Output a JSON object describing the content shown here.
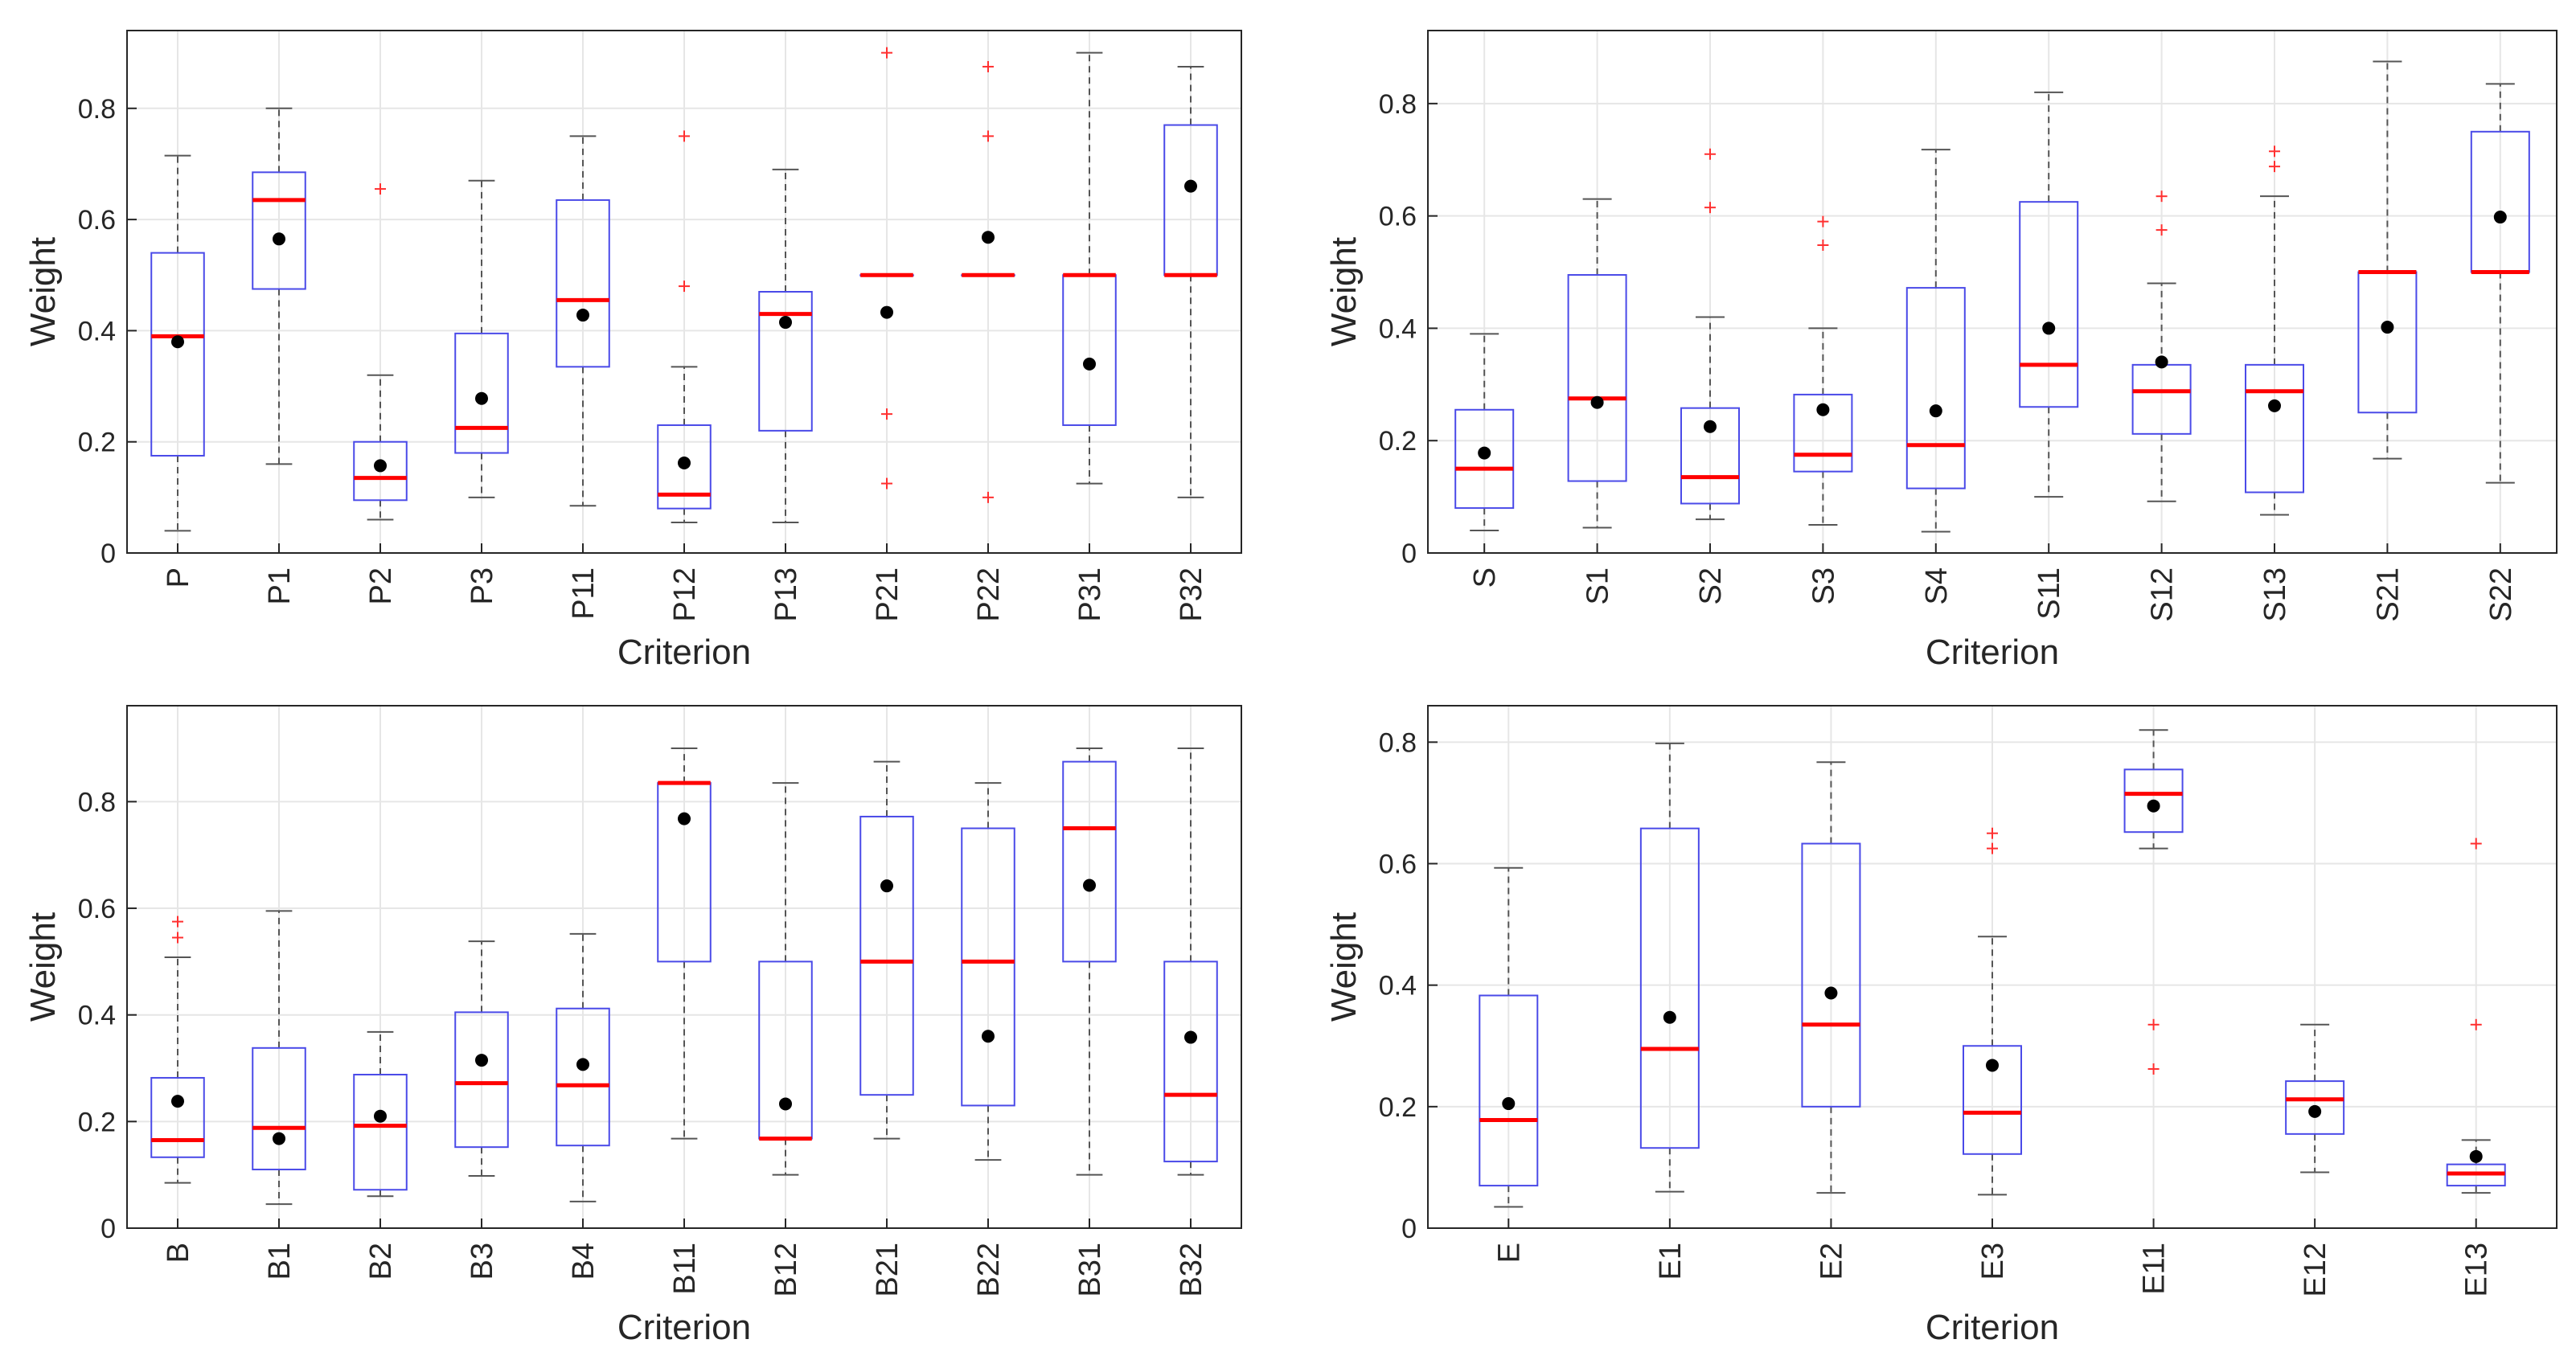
{
  "chart_data": [
    {
      "type": "box",
      "xlabel": "Criterion",
      "ylabel": "Weight",
      "ylim": [
        0,
        0.94
      ],
      "yticks": [
        0,
        0.2,
        0.4,
        0.6,
        0.8
      ],
      "ytick_labels": [
        "0",
        "0.2",
        "0.4",
        "0.6",
        "0.8"
      ],
      "grid": true,
      "categories": [
        "P",
        "P1",
        "P2",
        "P3",
        "P11",
        "P12",
        "P13",
        "P21",
        "P22",
        "P31",
        "P32"
      ],
      "boxes": [
        {
          "q1": 0.175,
          "median": 0.39,
          "q3": 0.54,
          "whisker_low": 0.04,
          "whisker_high": 0.715,
          "mean": 0.38,
          "outliers": []
        },
        {
          "q1": 0.475,
          "median": 0.635,
          "q3": 0.685,
          "whisker_low": 0.16,
          "whisker_high": 0.8,
          "mean": 0.565,
          "outliers": []
        },
        {
          "q1": 0.095,
          "median": 0.135,
          "q3": 0.2,
          "whisker_low": 0.06,
          "whisker_high": 0.32,
          "mean": 0.157,
          "outliers": [
            0.655
          ]
        },
        {
          "q1": 0.18,
          "median": 0.225,
          "q3": 0.395,
          "whisker_low": 0.1,
          "whisker_high": 0.67,
          "mean": 0.278,
          "outliers": []
        },
        {
          "q1": 0.335,
          "median": 0.455,
          "q3": 0.635,
          "whisker_low": 0.085,
          "whisker_high": 0.75,
          "mean": 0.428,
          "outliers": []
        },
        {
          "q1": 0.08,
          "median": 0.105,
          "q3": 0.23,
          "whisker_low": 0.055,
          "whisker_high": 0.335,
          "mean": 0.162,
          "outliers": [
            0.48,
            0.75
          ]
        },
        {
          "q1": 0.22,
          "median": 0.43,
          "q3": 0.47,
          "whisker_low": 0.055,
          "whisker_high": 0.69,
          "mean": 0.415,
          "outliers": []
        },
        {
          "q1": 0.5,
          "median": 0.5,
          "q3": 0.5,
          "whisker_low": 0.5,
          "whisker_high": 0.5,
          "mean": 0.433,
          "outliers": [
            0.125,
            0.25,
            0.9
          ]
        },
        {
          "q1": 0.5,
          "median": 0.5,
          "q3": 0.5,
          "whisker_low": 0.5,
          "whisker_high": 0.5,
          "mean": 0.568,
          "outliers": [
            0.1,
            0.75,
            0.875
          ]
        },
        {
          "q1": 0.23,
          "median": 0.5,
          "q3": 0.5,
          "whisker_low": 0.125,
          "whisker_high": 0.9,
          "mean": 0.34,
          "outliers": []
        },
        {
          "q1": 0.5,
          "median": 0.5,
          "q3": 0.77,
          "whisker_low": 0.1,
          "whisker_high": 0.875,
          "mean": 0.66,
          "outliers": []
        }
      ]
    },
    {
      "type": "box",
      "xlabel": "Criterion",
      "ylabel": "Weight",
      "ylim": [
        0,
        0.93
      ],
      "yticks": [
        0,
        0.2,
        0.4,
        0.6,
        0.8
      ],
      "ytick_labels": [
        "0",
        "0.2",
        "0.4",
        "0.6",
        "0.8"
      ],
      "grid": true,
      "categories": [
        "S",
        "S1",
        "S2",
        "S3",
        "S4",
        "S11",
        "S12",
        "S13",
        "S21",
        "S22"
      ],
      "boxes": [
        {
          "q1": 0.08,
          "median": 0.15,
          "q3": 0.255,
          "whisker_low": 0.04,
          "whisker_high": 0.39,
          "mean": 0.178,
          "outliers": []
        },
        {
          "q1": 0.128,
          "median": 0.275,
          "q3": 0.495,
          "whisker_low": 0.045,
          "whisker_high": 0.63,
          "mean": 0.268,
          "outliers": []
        },
        {
          "q1": 0.088,
          "median": 0.135,
          "q3": 0.258,
          "whisker_low": 0.06,
          "whisker_high": 0.42,
          "mean": 0.225,
          "outliers": [
            0.615,
            0.71
          ]
        },
        {
          "q1": 0.145,
          "median": 0.175,
          "q3": 0.282,
          "whisker_low": 0.05,
          "whisker_high": 0.4,
          "mean": 0.255,
          "outliers": [
            0.548,
            0.59
          ]
        },
        {
          "q1": 0.115,
          "median": 0.192,
          "q3": 0.472,
          "whisker_low": 0.038,
          "whisker_high": 0.718,
          "mean": 0.253,
          "outliers": []
        },
        {
          "q1": 0.26,
          "median": 0.335,
          "q3": 0.625,
          "whisker_low": 0.1,
          "whisker_high": 0.82,
          "mean": 0.4,
          "outliers": []
        },
        {
          "q1": 0.212,
          "median": 0.288,
          "q3": 0.335,
          "whisker_low": 0.092,
          "whisker_high": 0.48,
          "mean": 0.34,
          "outliers": [
            0.575,
            0.635
          ]
        },
        {
          "q1": 0.108,
          "median": 0.288,
          "q3": 0.335,
          "whisker_low": 0.068,
          "whisker_high": 0.635,
          "mean": 0.262,
          "outliers": [
            0.688,
            0.715
          ]
        },
        {
          "q1": 0.25,
          "median": 0.5,
          "q3": 0.5,
          "whisker_low": 0.168,
          "whisker_high": 0.875,
          "mean": 0.402,
          "outliers": []
        },
        {
          "q1": 0.5,
          "median": 0.5,
          "q3": 0.75,
          "whisker_low": 0.125,
          "whisker_high": 0.835,
          "mean": 0.598,
          "outliers": []
        }
      ]
    },
    {
      "type": "box",
      "xlabel": "Criterion",
      "ylabel": "Weight",
      "ylim": [
        0,
        0.98
      ],
      "yticks": [
        0,
        0.2,
        0.4,
        0.6,
        0.8
      ],
      "ytick_labels": [
        "0",
        "0.2",
        "0.4",
        "0.6",
        "0.8"
      ],
      "grid": true,
      "categories": [
        "B",
        "B1",
        "B2",
        "B3",
        "B4",
        "B11",
        "B12",
        "B21",
        "B22",
        "B31",
        "B32"
      ],
      "boxes": [
        {
          "q1": 0.133,
          "median": 0.165,
          "q3": 0.282,
          "whisker_low": 0.085,
          "whisker_high": 0.508,
          "mean": 0.238,
          "outliers": [
            0.545,
            0.575
          ]
        },
        {
          "q1": 0.11,
          "median": 0.188,
          "q3": 0.338,
          "whisker_low": 0.045,
          "whisker_high": 0.595,
          "mean": 0.168,
          "outliers": []
        },
        {
          "q1": 0.072,
          "median": 0.192,
          "q3": 0.288,
          "whisker_low": 0.06,
          "whisker_high": 0.368,
          "mean": 0.21,
          "outliers": []
        },
        {
          "q1": 0.152,
          "median": 0.272,
          "q3": 0.405,
          "whisker_low": 0.098,
          "whisker_high": 0.538,
          "mean": 0.315,
          "outliers": []
        },
        {
          "q1": 0.155,
          "median": 0.268,
          "q3": 0.412,
          "whisker_low": 0.05,
          "whisker_high": 0.552,
          "mean": 0.307,
          "outliers": []
        },
        {
          "q1": 0.5,
          "median": 0.835,
          "q3": 0.835,
          "whisker_low": 0.168,
          "whisker_high": 0.9,
          "mean": 0.768,
          "outliers": []
        },
        {
          "q1": 0.168,
          "median": 0.168,
          "q3": 0.5,
          "whisker_low": 0.1,
          "whisker_high": 0.835,
          "mean": 0.233,
          "outliers": []
        },
        {
          "q1": 0.25,
          "median": 0.5,
          "q3": 0.772,
          "whisker_low": 0.168,
          "whisker_high": 0.875,
          "mean": 0.642,
          "outliers": []
        },
        {
          "q1": 0.23,
          "median": 0.5,
          "q3": 0.75,
          "whisker_low": 0.128,
          "whisker_high": 0.835,
          "mean": 0.36,
          "outliers": []
        },
        {
          "q1": 0.5,
          "median": 0.75,
          "q3": 0.875,
          "whisker_low": 0.1,
          "whisker_high": 0.9,
          "mean": 0.643,
          "outliers": []
        },
        {
          "q1": 0.125,
          "median": 0.25,
          "q3": 0.5,
          "whisker_low": 0.1,
          "whisker_high": 0.9,
          "mean": 0.358,
          "outliers": []
        }
      ]
    },
    {
      "type": "box",
      "xlabel": "Criterion",
      "ylabel": "Weight",
      "ylim": [
        0,
        0.86
      ],
      "yticks": [
        0,
        0.2,
        0.4,
        0.6,
        0.8
      ],
      "ytick_labels": [
        "0",
        "0.2",
        "0.4",
        "0.6",
        "0.8"
      ],
      "grid": true,
      "categories": [
        "E",
        "E1",
        "E2",
        "E3",
        "E11",
        "E12",
        "E13"
      ],
      "boxes": [
        {
          "q1": 0.07,
          "median": 0.178,
          "q3": 0.383,
          "whisker_low": 0.035,
          "whisker_high": 0.593,
          "mean": 0.205,
          "outliers": []
        },
        {
          "q1": 0.132,
          "median": 0.295,
          "q3": 0.658,
          "whisker_low": 0.06,
          "whisker_high": 0.798,
          "mean": 0.347,
          "outliers": []
        },
        {
          "q1": 0.2,
          "median": 0.335,
          "q3": 0.633,
          "whisker_low": 0.058,
          "whisker_high": 0.767,
          "mean": 0.387,
          "outliers": []
        },
        {
          "q1": 0.122,
          "median": 0.19,
          "q3": 0.3,
          "whisker_low": 0.055,
          "whisker_high": 0.48,
          "mean": 0.268,
          "outliers": [
            0.625,
            0.65
          ]
        },
        {
          "q1": 0.652,
          "median": 0.715,
          "q3": 0.755,
          "whisker_low": 0.625,
          "whisker_high": 0.82,
          "mean": 0.695,
          "outliers": [
            0.262,
            0.335
          ]
        },
        {
          "q1": 0.155,
          "median": 0.212,
          "q3": 0.242,
          "whisker_low": 0.092,
          "whisker_high": 0.335,
          "mean": 0.192,
          "outliers": []
        },
        {
          "q1": 0.07,
          "median": 0.09,
          "q3": 0.105,
          "whisker_low": 0.058,
          "whisker_high": 0.145,
          "mean": 0.118,
          "outliers": [
            0.335,
            0.633
          ]
        }
      ]
    }
  ],
  "style": {
    "box_color": "#4a4ae8",
    "median_color": "#ff0000",
    "whisker_color": "#555555",
    "mean_color": "#000000",
    "outlier_color": "#ff3030",
    "grid_color": "#e6e6e6"
  }
}
